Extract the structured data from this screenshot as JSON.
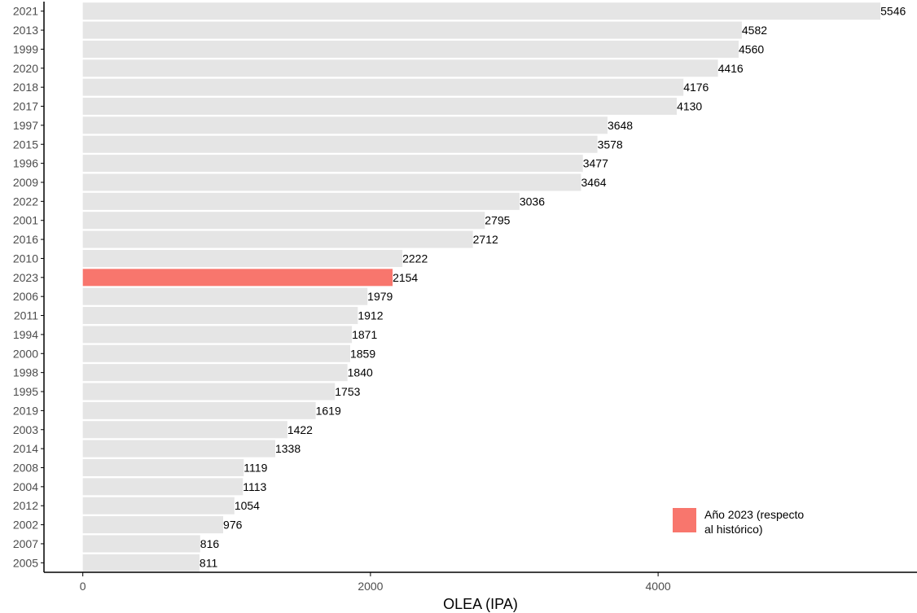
{
  "chart_data": {
    "type": "bar",
    "orientation": "horizontal",
    "categories": [
      "2021",
      "2013",
      "1999",
      "2020",
      "2018",
      "2017",
      "1997",
      "2015",
      "1996",
      "2009",
      "2022",
      "2001",
      "2016",
      "2010",
      "2023",
      "2006",
      "2011",
      "1994",
      "2000",
      "1998",
      "1995",
      "2019",
      "2003",
      "2014",
      "2008",
      "2004",
      "2012",
      "2002",
      "2007",
      "2005"
    ],
    "values": [
      5546,
      4582,
      4560,
      4416,
      4176,
      4130,
      3648,
      3578,
      3477,
      3464,
      3036,
      2795,
      2712,
      2222,
      2154,
      1979,
      1912,
      1871,
      1859,
      1840,
      1753,
      1619,
      1422,
      1338,
      1119,
      1113,
      1054,
      976,
      816,
      811
    ],
    "highlight_category": "2023",
    "xlabel": "OLEA (IPA)",
    "ylabel": "",
    "xlim": [
      -270,
      5800
    ],
    "xticks": [
      0,
      2000,
      4000
    ],
    "grid": false,
    "legend_position": "bottom-right",
    "legend": {
      "line1": "Año 2023 (respecto",
      "line2": " al histórico)"
    },
    "colors": {
      "bar": "#e5e5e5",
      "highlight": "#f8766d",
      "axis": "#000000",
      "tick_label": "#4d4d4d"
    }
  }
}
